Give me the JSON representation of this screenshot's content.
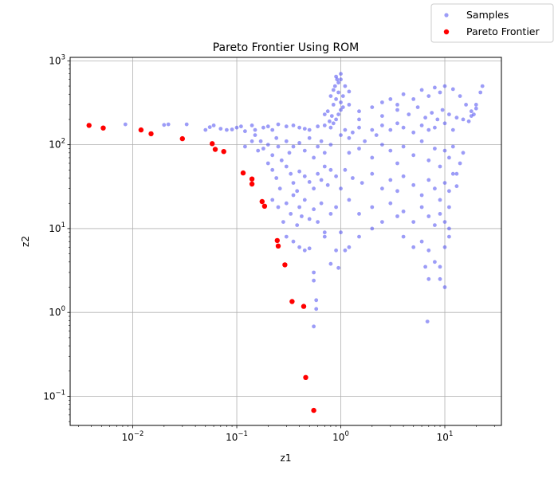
{
  "chart_data": {
    "type": "scatter",
    "title": "Pareto Frontier Using ROM",
    "xlabel": "z1",
    "ylabel": "z2",
    "x_scale": "log",
    "y_scale": "log",
    "xlim": [
      0.0025,
      35
    ],
    "ylim": [
      0.045,
      1100
    ],
    "grid": true,
    "legend_position": "outside-top-right",
    "x_tick_labels": [
      {
        "value": 0.01,
        "label": "10",
        "exp": "−2"
      },
      {
        "value": 0.1,
        "label": "10",
        "exp": "−1"
      },
      {
        "value": 1,
        "label": "10",
        "exp": "0"
      },
      {
        "value": 10,
        "label": "10",
        "exp": "1"
      }
    ],
    "y_tick_labels": [
      {
        "value": 0.1,
        "label": "10",
        "exp": "−1"
      },
      {
        "value": 1,
        "label": "10",
        "exp": "0"
      },
      {
        "value": 10,
        "label": "10",
        "exp": "1"
      },
      {
        "value": 100,
        "label": "10",
        "exp": "2"
      },
      {
        "value": 1000,
        "label": "10",
        "exp": "3"
      }
    ],
    "series": [
      {
        "name": "Samples",
        "color": "#4b4bf0",
        "points": [
          [
            0.0085,
            175
          ],
          [
            0.02,
            172
          ],
          [
            0.022,
            175
          ],
          [
            0.033,
            175
          ],
          [
            0.05,
            150
          ],
          [
            0.055,
            162
          ],
          [
            0.06,
            170
          ],
          [
            0.07,
            155
          ],
          [
            0.08,
            150
          ],
          [
            0.09,
            152
          ],
          [
            0.1,
            160
          ],
          [
            0.11,
            165
          ],
          [
            0.12,
            145
          ],
          [
            0.14,
            170
          ],
          [
            0.15,
            150
          ],
          [
            0.18,
            160
          ],
          [
            0.2,
            165
          ],
          [
            0.22,
            150
          ],
          [
            0.25,
            175
          ],
          [
            0.3,
            165
          ],
          [
            0.35,
            170
          ],
          [
            0.4,
            160
          ],
          [
            0.45,
            155
          ],
          [
            0.5,
            150
          ],
          [
            0.6,
            165
          ],
          [
            0.7,
            170
          ],
          [
            0.8,
            160
          ],
          [
            0.12,
            95
          ],
          [
            0.14,
            110
          ],
          [
            0.15,
            130
          ],
          [
            0.16,
            85
          ],
          [
            0.17,
            110
          ],
          [
            0.18,
            90
          ],
          [
            0.2,
            100
          ],
          [
            0.22,
            75
          ],
          [
            0.24,
            120
          ],
          [
            0.25,
            95
          ],
          [
            0.27,
            65
          ],
          [
            0.3,
            110
          ],
          [
            0.32,
            80
          ],
          [
            0.35,
            95
          ],
          [
            0.4,
            105
          ],
          [
            0.45,
            85
          ],
          [
            0.5,
            120
          ],
          [
            0.55,
            70
          ],
          [
            0.6,
            95
          ],
          [
            0.65,
            110
          ],
          [
            0.7,
            80
          ],
          [
            0.8,
            100
          ],
          [
            0.2,
            60
          ],
          [
            0.22,
            50
          ],
          [
            0.24,
            40
          ],
          [
            0.26,
            30
          ],
          [
            0.3,
            55
          ],
          [
            0.33,
            45
          ],
          [
            0.35,
            35
          ],
          [
            0.38,
            28
          ],
          [
            0.4,
            48
          ],
          [
            0.45,
            42
          ],
          [
            0.5,
            36
          ],
          [
            0.55,
            30
          ],
          [
            0.6,
            45
          ],
          [
            0.65,
            38
          ],
          [
            0.7,
            55
          ],
          [
            0.75,
            33
          ],
          [
            0.8,
            50
          ],
          [
            0.9,
            42
          ],
          [
            0.22,
            22
          ],
          [
            0.25,
            18
          ],
          [
            0.28,
            12
          ],
          [
            0.3,
            20
          ],
          [
            0.33,
            15
          ],
          [
            0.35,
            25
          ],
          [
            0.38,
            11
          ],
          [
            0.4,
            18
          ],
          [
            0.42,
            14
          ],
          [
            0.45,
            22
          ],
          [
            0.5,
            13
          ],
          [
            0.55,
            17
          ],
          [
            0.6,
            12
          ],
          [
            0.65,
            20
          ],
          [
            0.7,
            9
          ],
          [
            0.7,
            8
          ],
          [
            0.8,
            15
          ],
          [
            0.9,
            18
          ],
          [
            0.3,
            8
          ],
          [
            0.35,
            7
          ],
          [
            0.4,
            6
          ],
          [
            0.45,
            5.5
          ],
          [
            0.5,
            5.8
          ],
          [
            0.55,
            3
          ],
          [
            0.55,
            2.4
          ],
          [
            0.58,
            1.4
          ],
          [
            0.58,
            1.1
          ],
          [
            0.55,
            0.68
          ],
          [
            0.9,
            5.5
          ],
          [
            0.95,
            3.4
          ],
          [
            0.8,
            3.8
          ],
          [
            0.85,
            180
          ],
          [
            0.9,
            200
          ],
          [
            0.95,
            230
          ],
          [
            1.0,
            260
          ],
          [
            0.85,
            300
          ],
          [
            0.9,
            350
          ],
          [
            0.95,
            420
          ],
          [
            0.88,
            500
          ],
          [
            0.92,
            600
          ],
          [
            0.9,
            650
          ],
          [
            0.85,
            450
          ],
          [
            0.8,
            380
          ],
          [
            1.0,
            320
          ],
          [
            1.05,
            280
          ],
          [
            0.75,
            250
          ],
          [
            0.78,
            190
          ],
          [
            0.7,
            230
          ],
          [
            0.82,
            220
          ],
          [
            1.0,
            130
          ],
          [
            1.1,
            150
          ],
          [
            1.2,
            120
          ],
          [
            1.3,
            140
          ],
          [
            1.5,
            160
          ],
          [
            1.7,
            110
          ],
          [
            2.0,
            150
          ],
          [
            2.2,
            130
          ],
          [
            2.5,
            170
          ],
          [
            3.0,
            150
          ],
          [
            3.5,
            180
          ],
          [
            4.0,
            160
          ],
          [
            5.0,
            140
          ],
          [
            6.0,
            170
          ],
          [
            7.0,
            150
          ],
          [
            8.0,
            160
          ],
          [
            10,
            180
          ],
          [
            12,
            150
          ],
          [
            15,
            200
          ],
          [
            18,
            220
          ],
          [
            1.2,
            300
          ],
          [
            1.5,
            250
          ],
          [
            2.0,
            280
          ],
          [
            2.5,
            320
          ],
          [
            3.0,
            350
          ],
          [
            3.5,
            300
          ],
          [
            4.0,
            400
          ],
          [
            5.0,
            350
          ],
          [
            6.0,
            450
          ],
          [
            7.0,
            380
          ],
          [
            8.0,
            480
          ],
          [
            9.0,
            420
          ],
          [
            10,
            500
          ],
          [
            12,
            460
          ],
          [
            14,
            380
          ],
          [
            16,
            300
          ],
          [
            18,
            250
          ],
          [
            20,
            300
          ],
          [
            22,
            420
          ],
          [
            23,
            500
          ],
          [
            1.2,
            80
          ],
          [
            1.5,
            90
          ],
          [
            2.0,
            70
          ],
          [
            2.5,
            100
          ],
          [
            3.0,
            85
          ],
          [
            3.5,
            60
          ],
          [
            4.0,
            95
          ],
          [
            5.0,
            75
          ],
          [
            6.0,
            110
          ],
          [
            7.0,
            65
          ],
          [
            8.0,
            90
          ],
          [
            9.0,
            55
          ],
          [
            10,
            85
          ],
          [
            11,
            70
          ],
          [
            12,
            95
          ],
          [
            13,
            45
          ],
          [
            14,
            60
          ],
          [
            15,
            80
          ],
          [
            1.1,
            50
          ],
          [
            1.3,
            40
          ],
          [
            1.6,
            35
          ],
          [
            2.0,
            45
          ],
          [
            2.5,
            30
          ],
          [
            3.0,
            38
          ],
          [
            3.5,
            28
          ],
          [
            4.0,
            42
          ],
          [
            5.0,
            33
          ],
          [
            6.0,
            25
          ],
          [
            7.0,
            38
          ],
          [
            8.0,
            30
          ],
          [
            9.0,
            22
          ],
          [
            10,
            35
          ],
          [
            11,
            28
          ],
          [
            12,
            45
          ],
          [
            13,
            32
          ],
          [
            1.0,
            30
          ],
          [
            1.2,
            22
          ],
          [
            1.5,
            15
          ],
          [
            2.0,
            18
          ],
          [
            2.5,
            12
          ],
          [
            3.0,
            20
          ],
          [
            3.5,
            14
          ],
          [
            4.0,
            16
          ],
          [
            5.0,
            12
          ],
          [
            6.0,
            18
          ],
          [
            7.0,
            14
          ],
          [
            8.0,
            11
          ],
          [
            9.0,
            15
          ],
          [
            10,
            12
          ],
          [
            11,
            18
          ],
          [
            1.0,
            9
          ],
          [
            1.1,
            5.5
          ],
          [
            1.2,
            6
          ],
          [
            1.5,
            8
          ],
          [
            2.0,
            10
          ],
          [
            4.0,
            8
          ],
          [
            5.0,
            6
          ],
          [
            6.0,
            7
          ],
          [
            7.0,
            5.5
          ],
          [
            8.0,
            4
          ],
          [
            9.0,
            3.5
          ],
          [
            10,
            6
          ],
          [
            11,
            8
          ],
          [
            11,
            10
          ],
          [
            6.5,
            3.5
          ],
          [
            7.0,
            2.5
          ],
          [
            9.0,
            2.5
          ],
          [
            10,
            2
          ],
          [
            6.8,
            0.78
          ],
          [
            1.0,
            600
          ],
          [
            1.1,
            500
          ],
          [
            1.2,
            430
          ],
          [
            1.05,
            380
          ],
          [
            1.0,
            700
          ],
          [
            0.95,
            550
          ],
          [
            1.5,
            200
          ],
          [
            2.5,
            220
          ],
          [
            3.5,
            260
          ],
          [
            4.5,
            230
          ],
          [
            5.5,
            280
          ],
          [
            6.5,
            210
          ],
          [
            7.5,
            240
          ],
          [
            8.5,
            200
          ],
          [
            9.5,
            260
          ],
          [
            11,
            230
          ],
          [
            13,
            210
          ],
          [
            17,
            190
          ],
          [
            19,
            230
          ],
          [
            20,
            270
          ]
        ]
      },
      {
        "name": "Pareto Frontier",
        "color": "#ff0000",
        "points": [
          [
            0.0038,
            170
          ],
          [
            0.0052,
            158
          ],
          [
            0.012,
            150
          ],
          [
            0.015,
            135
          ],
          [
            0.03,
            118
          ],
          [
            0.058,
            103
          ],
          [
            0.062,
            88
          ],
          [
            0.075,
            83
          ],
          [
            0.115,
            46
          ],
          [
            0.14,
            39
          ],
          [
            0.14,
            34
          ],
          [
            0.175,
            21
          ],
          [
            0.185,
            18.5
          ],
          [
            0.245,
            7.2
          ],
          [
            0.25,
            6.2
          ],
          [
            0.29,
            3.7
          ],
          [
            0.34,
            1.35
          ],
          [
            0.44,
            1.18
          ],
          [
            0.46,
            0.168
          ],
          [
            0.55,
            0.068
          ]
        ]
      }
    ]
  }
}
